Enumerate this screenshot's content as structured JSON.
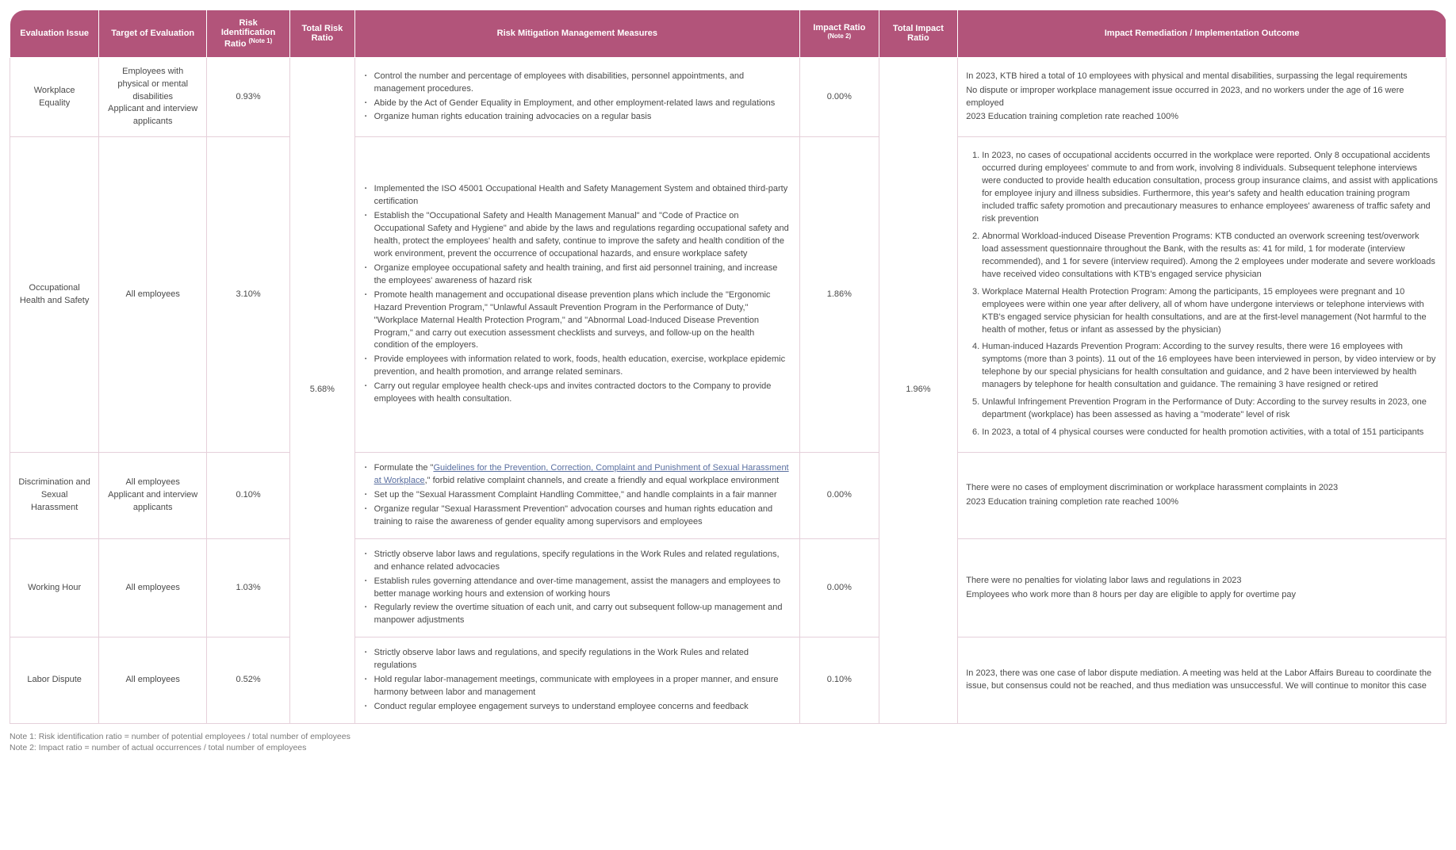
{
  "colors": {
    "header_bg": "#b2547a",
    "header_text": "#ffffff",
    "cell_border": "#e5d0da",
    "link": "#5a6fa0",
    "body_text": "#4a4a4a",
    "notes_text": "#7a7a7a"
  },
  "headers": {
    "c1": "Evaluation Issue",
    "c2": "Target of Evaluation",
    "c3": "Risk Identification Ratio",
    "c3_note": "(Note 1)",
    "c4": "Total Risk Ratio",
    "c5": "Risk Mitigation Management Measures",
    "c6": "Impact Ratio",
    "c6_note": "(Note 2)",
    "c7": "Total Impact Ratio",
    "c8": "Impact Remediation / Implementation Outcome"
  },
  "total_risk_ratio": "5.68%",
  "total_impact_ratio": "1.96%",
  "rows": {
    "r0": {
      "issue": "Workplace Equality",
      "target": "Employees with physical or mental disabilities\nApplicant and interview applicants",
      "risk_ratio": "0.93%",
      "measures": [
        "Control the number and percentage of employees with disabilities, personnel appointments, and management procedures.",
        "Abide by the Act of Gender Equality in Employment, and other employment-related laws and regulations",
        "Organize human rights education training advocacies on a regular basis"
      ],
      "impact_ratio": "0.00%",
      "outcome_lines": [
        "In 2023, KTB hired a total of 10 employees with physical and mental disabilities, surpassing the legal requirements",
        "No dispute or improper workplace management issue occurred in 2023, and no workers under the age of 16 were employed",
        "2023 Education training completion rate reached 100%"
      ]
    },
    "r1": {
      "issue": "Occupational Health and Safety",
      "target": "All employees",
      "risk_ratio": "3.10%",
      "measures": [
        "Implemented the ISO 45001 Occupational Health and Safety Management System and obtained third-party certification",
        "Establish the \"Occupational Safety and Health Management Manual\" and \"Code of Practice on Occupational Safety and Hygiene\" and abide by the laws and regulations regarding occupational safety and health, protect the employees' health and safety, continue to improve the safety and health condition of the work environment, prevent the occurrence of occupational hazards, and ensure workplace safety",
        "Organize employee occupational safety and health training, and first aid personnel training, and increase the employees' awareness of hazard risk",
        "Promote health management and occupational disease prevention plans which include the \"Ergonomic Hazard Prevention Program,\" \"Unlawful Assault Prevention Program in the Performance of Duty,\" \"Workplace Maternal Health Protection Program,\" and \"Abnormal Load-Induced Disease Prevention Program,\" and carry out execution assessment checklists and surveys, and follow-up on the health condition of the employers.",
        "Provide employees with information related to work, foods, health education, exercise, workplace epidemic prevention, and health promotion, and arrange related seminars.",
        "Carry out regular employee health check-ups and invites contracted doctors to the Company to provide employees with health consultation."
      ],
      "impact_ratio": "1.86%",
      "outcome_numbered": [
        "In 2023, no cases of occupational accidents occurred in the workplace were reported. Only 8 occupational accidents occurred during employees' commute to and from work, involving 8 individuals. Subsequent telephone interviews were conducted to provide health education consultation, process group insurance claims, and assist with applications for employee injury and illness subsidies. Furthermore, this year's safety and health education training program included traffic safety promotion and precautionary measures to enhance employees' awareness of traffic safety and risk prevention",
        "Abnormal Workload-induced Disease Prevention Programs: KTB conducted an overwork screening test/overwork load assessment questionnaire throughout the Bank, with the results as: 41 for mild, 1 for moderate (interview recommended), and 1 for severe (interview required). Among the 2 employees under moderate and severe workloads have received video consultations with KTB's engaged service physician",
        "Workplace Maternal Health Protection Program: Among the participants, 15 employees were pregnant and 10 employees were within one year after delivery, all of whom have undergone interviews or telephone interviews with KTB's engaged service physician for health consultations, and are at the first-level management (Not harmful to the health of mother, fetus or infant as assessed by the physician)",
        "Human-induced Hazards Prevention Program: According to the survey results, there were 16 employees with symptoms (more than 3 points). 11 out of the 16 employees have been interviewed in person, by video interview or by telephone by our special physicians for health consultation and guidance, and 2 have been interviewed by health managers by telephone for health consultation and guidance. The remaining 3 have resigned or retired",
        "Unlawful Infringement Prevention Program in the Performance of Duty: According to the survey results in 2023, one department (workplace) has been assessed as having a \"moderate\" level of risk",
        "In 2023, a total of 4 physical courses were conducted for health promotion activities, with a total of 151 participants"
      ]
    },
    "r2": {
      "issue": "Discrimination and Sexual Harassment",
      "target": "All employees\nApplicant and interview applicants",
      "risk_ratio": "0.10%",
      "measures_pre": "Formulate the \"",
      "measures_link": "Guidelines for the Prevention, Correction, Complaint and Punishment of Sexual Harassment at Workplace",
      "measures_post": ",\" forbid relative complaint channels, and create a friendly and equal workplace environment",
      "measures_rest": [
        "Set up the \"Sexual Harassment Complaint Handling Committee,\" and handle complaints in a fair manner",
        "Organize regular \"Sexual Harassment Prevention\" advocation courses and human rights education and training to raise the awareness of gender equality among supervisors and employees"
      ],
      "impact_ratio": "0.00%",
      "outcome_lines": [
        "There were no cases of employment discrimination or workplace harassment complaints in 2023",
        " 2023 Education training completion rate reached 100%"
      ]
    },
    "r3": {
      "issue": "Working Hour",
      "target": "All employees",
      "risk_ratio": "1.03%",
      "measures": [
        "Strictly observe labor laws and regulations, specify regulations in the Work Rules and related regulations, and enhance related advocacies",
        "Establish rules governing attendance and over-time management, assist the managers and employees to better manage working hours and extension of working hours",
        "Regularly review the overtime situation of each unit, and carry out subsequent follow-up management and manpower adjustments"
      ],
      "impact_ratio": "0.00%",
      "outcome_lines": [
        "There were no penalties for violating labor laws and regulations in 2023",
        " Employees who work more than 8 hours per day are eligible to apply for overtime pay"
      ]
    },
    "r4": {
      "issue": "Labor Dispute",
      "target": "All employees",
      "risk_ratio": "0.52%",
      "measures": [
        "Strictly observe labor laws and regulations, and specify regulations in the Work Rules and related regulations",
        "Hold regular labor-management meetings, communicate with employees in a proper manner, and ensure harmony between labor and management",
        "Conduct regular employee engagement surveys to understand employee concerns and feedback"
      ],
      "impact_ratio": "0.10%",
      "outcome_lines": [
        "In 2023, there was one case of labor dispute mediation. A meeting was held at the Labor Affairs Bureau to coordinate the issue, but consensus could not be reached, and thus mediation was unsuccessful. We will continue to monitor this case"
      ]
    }
  },
  "notes": {
    "n1": "Note 1: Risk identification ratio = number of potential employees / total number of employees",
    "n2": "Note 2: Impact ratio = number of actual occurrences / total number of employees"
  }
}
